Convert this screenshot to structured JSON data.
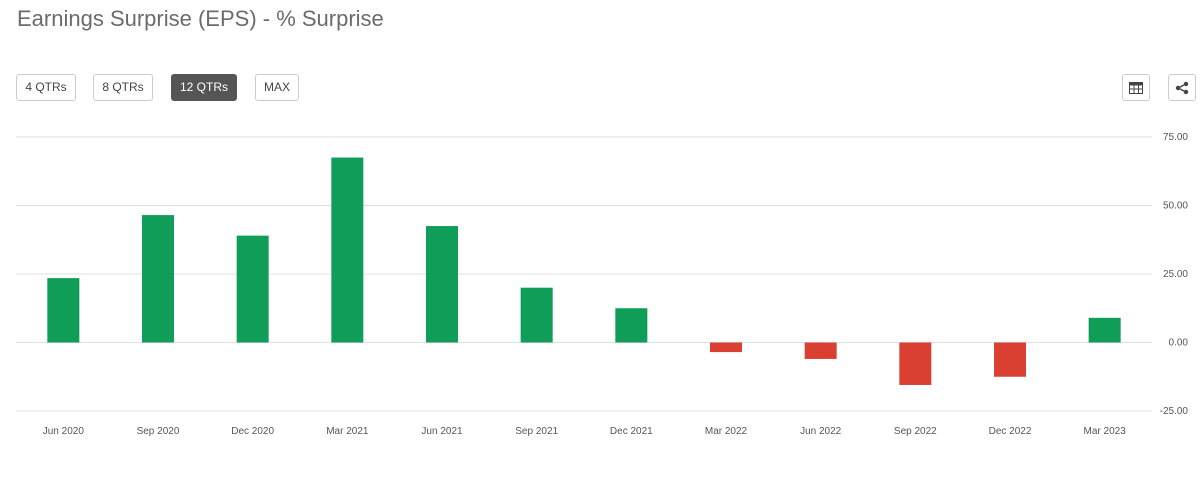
{
  "title": "Earnings Surprise (EPS) - % Surprise",
  "range_buttons": [
    {
      "label": "4 QTRs",
      "active": false
    },
    {
      "label": "8 QTRs",
      "active": false
    },
    {
      "label": "12 QTRs",
      "active": true
    },
    {
      "label": "MAX",
      "active": false
    }
  ],
  "icons": {
    "table": "table-icon",
    "share": "share-icon"
  },
  "colors": {
    "positive": "#0f9d58",
    "negative": "#d94032",
    "grid": "#e0e0e0"
  },
  "chart_data": {
    "type": "bar",
    "title": "",
    "xlabel": "",
    "ylabel": "",
    "categories": [
      "Jun 2020",
      "Sep 2020",
      "Dec 2020",
      "Mar 2021",
      "Jun 2021",
      "Sep 2021",
      "Dec 2021",
      "Mar 2022",
      "Jun 2022",
      "Sep 2022",
      "Dec 2022",
      "Mar 2023"
    ],
    "values": [
      23.5,
      46.5,
      39.0,
      67.5,
      42.5,
      20.0,
      12.5,
      -3.5,
      -6.0,
      -15.5,
      -12.5,
      9.0
    ],
    "ylim": [
      -25,
      75
    ],
    "yticks": [
      75,
      50,
      25,
      0,
      -25
    ],
    "ytick_labels": [
      "75.00",
      "50.00",
      "25.00",
      "0.00",
      "-25.00"
    ],
    "y_axis_side": "right",
    "grid": true,
    "legend": false
  }
}
